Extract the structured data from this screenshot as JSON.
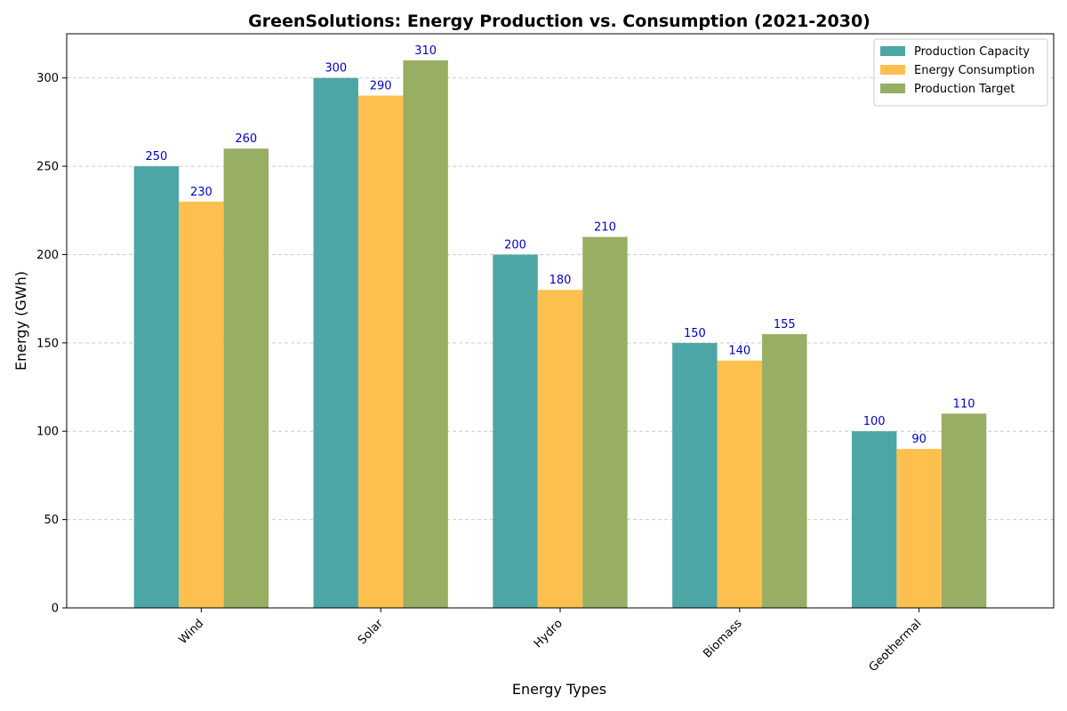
{
  "chart_data": {
    "type": "bar",
    "title": "GreenSolutions: Energy Production vs. Consumption (2021-2030)",
    "xlabel": "Energy Types",
    "ylabel": "Energy (GWh)",
    "categories": [
      "Wind",
      "Solar",
      "Hydro",
      "Biomass",
      "Geothermal"
    ],
    "series": [
      {
        "name": "Production Capacity",
        "values": [
          250,
          300,
          200,
          150,
          100
        ],
        "color": "#4da6a6"
      },
      {
        "name": "Energy Consumption",
        "values": [
          230,
          290,
          180,
          140,
          90
        ],
        "color": "#fdbf4e"
      },
      {
        "name": "Production Target",
        "values": [
          260,
          310,
          210,
          155,
          110
        ],
        "color": "#97ae63"
      }
    ],
    "ylim": [
      0,
      325
    ],
    "yticks": [
      0,
      50,
      100,
      150,
      200,
      250,
      300
    ],
    "grid": "y-dashed",
    "legend_position": "top-right",
    "data_label_color": "#0000cc"
  }
}
